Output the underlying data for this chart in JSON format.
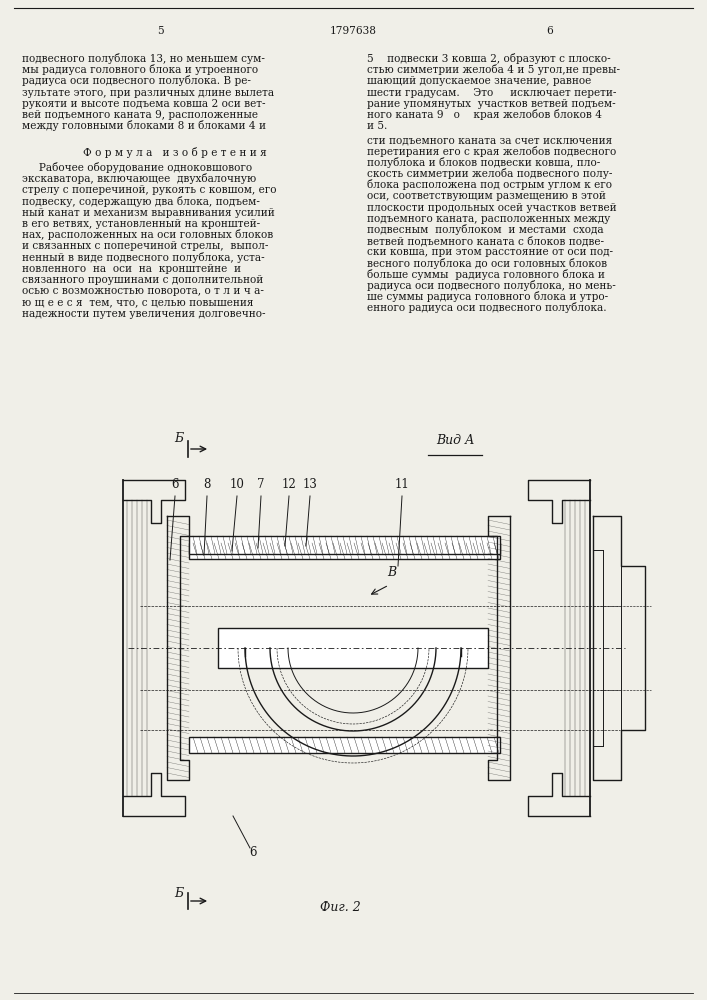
{
  "background_color": "#f0efe8",
  "text_color": "#1a1a1a",
  "page_number_left": "5",
  "patent_number": "1797638",
  "page_number_right": "6",
  "col1_lines_top": [
    "подвесного полублока 13, но меньшем сум-",
    "мы радиуса головного блока и утроенного",
    "радиуса оси подвесного полублока. В ре-",
    "зультате этого, при различных длине вылета",
    "рукояти и высоте подъема ковша 2 оси вет-",
    "вей подъемного каната 9, расположенные",
    "между головными блоками 8 и блоками 4 и"
  ],
  "col2_lines_top": [
    "5    подвески 3 ковша 2, образуют с плоско-",
    "стью симметрии желоба 4 и 5 угол,не превы-",
    "шающий допускаемое значение, равное",
    "шести градусам.    Это     исключает перети-",
    "рание упомянутых  участков ветвей подъем-",
    "ного каната 9   о    края желобов блоков 4",
    "и 5."
  ],
  "formula_header": "Ф о р м у л а   и з о б р е т е н и я",
  "col1_formula_lines": [
    "     Рабочее оборудование одноковшового",
    "экскаватора, включающее  двухбалочную",
    "стрелу с поперечиной, рукоять с ковшом, его",
    "подвеску, содержащую два блока, подъем-",
    "ный канат и механизм выравнивания усилий",
    "в его ветвях, установленный на кронштей-",
    "нах, расположенных на оси головных блоков",
    "и связанных с поперечиной стрелы,  выпол-",
    "ненный в виде подвесного полублока, уста-",
    "новленного  на  оси  на  кронштейне  и",
    "связанного проушинами с дополнительной",
    "осью с возможностью поворота, о т л и ч а-",
    "ю щ е е с я  тем, что, с целью повышения",
    "надежности путем увеличения долговечно-"
  ],
  "col2_formula_lines": [
    "сти подъемного каната за счет исключения",
    "перетирания его с края желобов подвесного",
    "полублока и блоков подвески ковша, пло-",
    "скость симметрии желоба подвесного полу-",
    "блока расположена под острым углом к его",
    "оси, соответствующим размещению в этой",
    "плоскости продольных осей участков ветвей",
    "подъемного каната, расположенных между",
    "подвесным  полублоком  и местами  схода",
    "ветвей подъемного каната с блоков подве-",
    "ски ковша, при этом расстояние от оси под-",
    "весного полублока до оси головных блоков",
    "больше суммы  радиуса головного блока и",
    "радиуса оси подвесного полублока, но мень-",
    "ше суммы радиуса головного блока и утро-",
    "енного радиуса оси подвесного полублока."
  ],
  "fig_label": "Фиг. 2",
  "view_label": "Вид А",
  "section_label": "Б",
  "B_label": "В"
}
